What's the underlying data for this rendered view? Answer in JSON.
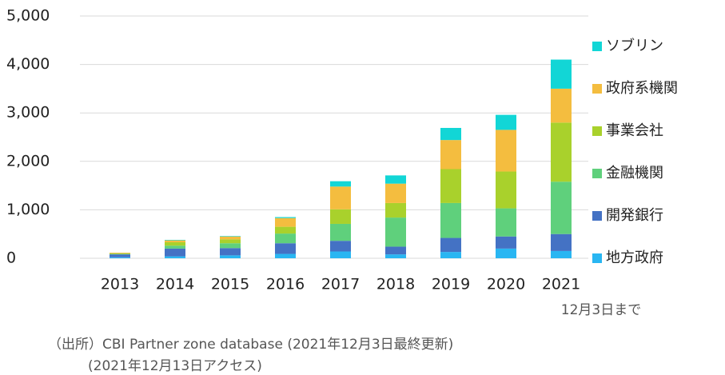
{
  "chart_data": {
    "type": "stacked_bar",
    "categories": [
      "2013",
      "2014",
      "2015",
      "2016",
      "2017",
      "2018",
      "2019",
      "2020",
      "2021"
    ],
    "series": [
      {
        "name": "地方政府",
        "color": "#29b6f2",
        "values": [
          20,
          40,
          60,
          90,
          140,
          80,
          130,
          200,
          150
        ]
      },
      {
        "name": "開発銀行",
        "color": "#4472c4",
        "values": [
          60,
          160,
          150,
          220,
          220,
          160,
          290,
          250,
          350
        ]
      },
      {
        "name": "金融機関",
        "color": "#5fd07c",
        "values": [
          10,
          60,
          100,
          200,
          350,
          600,
          720,
          580,
          1080
        ]
      },
      {
        "name": "事業会社",
        "color": "#a9d12c",
        "values": [
          10,
          70,
          80,
          140,
          300,
          300,
          700,
          760,
          1220
        ]
      },
      {
        "name": "政府系機関",
        "color": "#f4bd3f",
        "values": [
          15,
          40,
          60,
          180,
          470,
          400,
          600,
          860,
          700
        ]
      },
      {
        "name": "ソブリン",
        "color": "#12d6d6",
        "values": [
          0,
          10,
          10,
          20,
          110,
          170,
          250,
          310,
          600
        ]
      }
    ],
    "ylim": [
      0,
      5000
    ],
    "yticks": [
      0,
      {
        "value": 1000,
        "label": "1,000"
      },
      {
        "value": 2000,
        "label": "2,000"
      },
      {
        "value": 3000,
        "label": "3,000"
      },
      {
        "value": 4000,
        "label": "4,000"
      },
      {
        "value": 5000,
        "label": "5,000"
      }
    ],
    "grid": true,
    "annotation": "12月3日まで",
    "source": [
      "（出所）CBI  Partner zone database (2021年12月3日最終更新)",
      "(2021年12月13日アクセス)"
    ]
  }
}
